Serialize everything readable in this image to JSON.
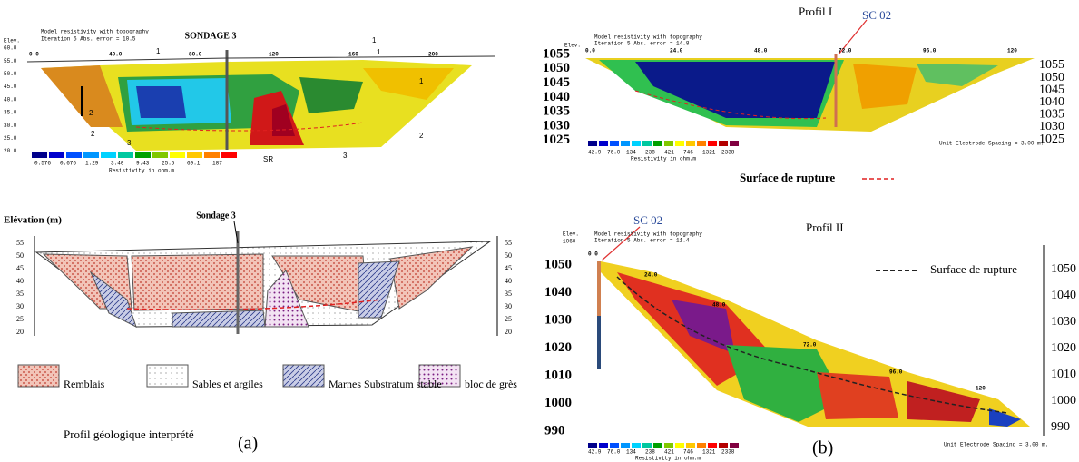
{
  "panel_a": {
    "tomography": {
      "header": [
        "Model resistivity with topography",
        "Iteration 5 Abs. error = 10.5"
      ],
      "elev_label": "Elev.",
      "elevations": [
        "60.0",
        "55.0",
        "50.0",
        "45.0",
        "40.0",
        "35.0",
        "30.0",
        "25.0",
        "20.0"
      ],
      "distances": [
        "0.0",
        "40.0",
        "80.0",
        "120",
        "160",
        "200"
      ],
      "borehole": "SONDAGE 3",
      "annotations": [
        "1",
        "1",
        "1",
        "1",
        "2",
        "2",
        "3",
        "3",
        "2",
        "SR"
      ],
      "scale_values": [
        "0.576",
        "0.676",
        "1.29",
        "3.40",
        "9.43",
        "25.5",
        "69.1",
        "187"
      ],
      "scale_title": "Resistivity in ohm.m"
    },
    "geology": {
      "y_label": "Elévation (m)",
      "borehole": "Sondage 3",
      "elevations_left": [
        "55",
        "50",
        "45",
        "40",
        "35",
        "30",
        "25",
        "20"
      ],
      "elevations_right": [
        "55",
        "50",
        "45",
        "40",
        "35",
        "30",
        "25",
        "20"
      ],
      "legend": [
        "Remblais",
        "Sables et argiles",
        "Marnes Substratum stable",
        "bloc de grès"
      ],
      "caption": "Profil géologique interprété",
      "tag": "(a)"
    }
  },
  "panel_b": {
    "profil_1": {
      "title": "Profil I",
      "borehole": "SC 02",
      "header": [
        "Model resistivity with topography",
        "Iteration 5 Abs. error = 14.8"
      ],
      "elev_label": "Elev.",
      "distances": [
        "0.0",
        "24.0",
        "48.0",
        "72.0",
        "96.0",
        "120"
      ],
      "elevations_left": [
        "1055",
        "1050",
        "1045",
        "1040",
        "1035",
        "1030",
        "1025"
      ],
      "elevations_right": [
        "1055",
        "1050",
        "1045",
        "1040",
        "1035",
        "1030",
        "1025"
      ],
      "scale_values": [
        "42.9",
        "76.0",
        "134",
        "238",
        "421",
        "746",
        "1321",
        "2338"
      ],
      "scale_title": "Resistivity in ohm.m",
      "spacing": "Unit Electrode Spacing = 3.00 m.",
      "legend": "Surface de rupture"
    },
    "profil_2": {
      "title": "Profil II",
      "borehole": "SC 02",
      "header": [
        "Model resistivity with topography",
        "Iteration 5 Abs. error = 11.4"
      ],
      "elev_label": "Elev.",
      "elev_top": "1060",
      "distances": [
        "0.0",
        "24.0",
        "48.0",
        "72.0",
        "96.0",
        "120"
      ],
      "elevations_left": [
        "1050",
        "1040",
        "1030",
        "1020",
        "1010",
        "1000",
        "990"
      ],
      "elevations_right": [
        "1050",
        "1040",
        "1030",
        "1020",
        "1010",
        "1000",
        "990"
      ],
      "scale_values": [
        "42.9",
        "76.0",
        "134",
        "238",
        "421",
        "746",
        "1321",
        "2338"
      ],
      "scale_title": "Resistivity in ohm.m",
      "spacing": "Unit Electrode Spacing = 3.00 m.",
      "legend": "Surface de rupture",
      "tag": "(b)"
    }
  }
}
